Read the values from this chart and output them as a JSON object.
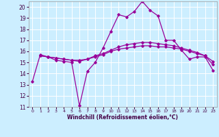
{
  "xlabel": "Windchill (Refroidissement éolien,°C)",
  "background_color": "#cceeff",
  "grid_color": "#ffffff",
  "line_color": "#990099",
  "xlim": [
    -0.5,
    23.5
  ],
  "ylim": [
    11,
    20.5
  ],
  "xticks": [
    0,
    1,
    2,
    3,
    4,
    5,
    6,
    7,
    8,
    9,
    10,
    11,
    12,
    13,
    14,
    15,
    16,
    17,
    18,
    19,
    20,
    21,
    22,
    23
  ],
  "yticks": [
    11,
    12,
    13,
    14,
    15,
    16,
    17,
    18,
    19,
    20
  ],
  "line1_x": [
    0,
    1,
    2,
    3,
    4,
    5,
    6,
    7,
    8,
    9,
    10,
    11,
    12,
    13,
    14,
    15,
    16,
    17,
    18,
    19,
    20,
    21,
    22,
    23
  ],
  "line1_y": [
    13.3,
    15.7,
    15.5,
    15.2,
    15.1,
    15.0,
    11.1,
    14.2,
    15.0,
    16.3,
    17.8,
    19.3,
    19.1,
    19.6,
    20.5,
    19.7,
    19.2,
    17.0,
    17.0,
    16.1,
    15.3,
    15.5,
    15.5,
    14.3
  ],
  "line2_x": [
    1,
    2,
    3,
    4,
    5,
    6,
    7,
    8,
    9,
    10,
    11,
    12,
    13,
    14,
    15,
    16,
    17,
    18,
    19,
    20,
    21,
    22,
    23
  ],
  "line2_y": [
    15.6,
    15.5,
    15.4,
    15.3,
    15.2,
    15.1,
    15.3,
    15.6,
    15.8,
    16.1,
    16.4,
    16.6,
    16.7,
    16.8,
    16.8,
    16.7,
    16.6,
    16.5,
    16.3,
    16.1,
    15.9,
    15.6,
    15.1
  ],
  "line3_x": [
    1,
    2,
    3,
    4,
    5,
    6,
    7,
    8,
    9,
    10,
    11,
    12,
    13,
    14,
    15,
    16,
    17,
    18,
    19,
    20,
    21,
    22,
    23
  ],
  "line3_y": [
    15.6,
    15.5,
    15.4,
    15.3,
    15.2,
    15.2,
    15.3,
    15.5,
    15.7,
    16.0,
    16.2,
    16.3,
    16.4,
    16.5,
    16.5,
    16.4,
    16.4,
    16.3,
    16.2,
    16.0,
    15.8,
    15.6,
    14.8
  ]
}
